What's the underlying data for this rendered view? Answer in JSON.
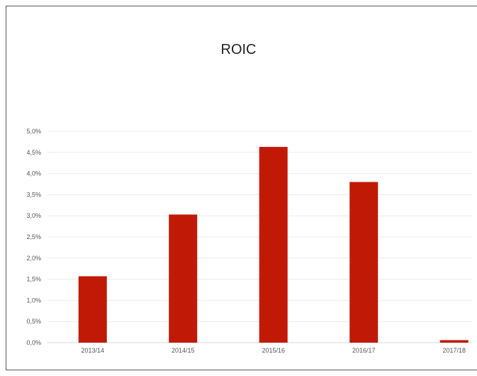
{
  "chart_data": {
    "type": "bar",
    "title": "ROIC",
    "xlabel": "",
    "ylabel": "",
    "categories": [
      "2013/14",
      "2014/15",
      "2015/16",
      "2016/17",
      "2017/18"
    ],
    "values": [
      1.57,
      3.03,
      4.63,
      3.8,
      0.06
    ],
    "ylim": [
      0,
      5
    ],
    "yticks": [
      0,
      0.5,
      1,
      1.5,
      2,
      2.5,
      3,
      3.5,
      4,
      4.5,
      5
    ],
    "ytick_labels": [
      "0,0%",
      "0,5%",
      "1,0%",
      "1,5%",
      "2,0%",
      "2,5%",
      "3,0%",
      "3,5%",
      "4,0%",
      "4,5%",
      "5,0%"
    ],
    "grid": true,
    "legend": "none",
    "bar_color": "#c01a06",
    "grid_color": "#ececec"
  }
}
